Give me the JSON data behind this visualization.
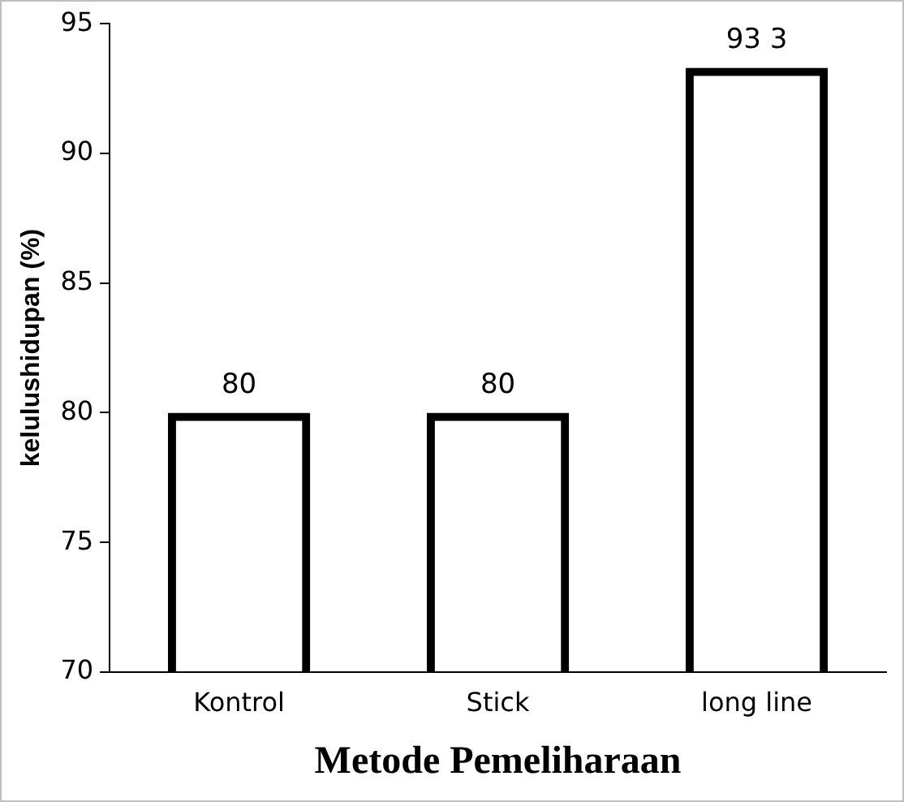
{
  "chart_data": {
    "type": "bar",
    "xlabel": "Metode Pemeliharaan",
    "ylabel": "kelulushidupan (%)",
    "categories": [
      "Kontrol",
      "Stick",
      "long line"
    ],
    "values": [
      80,
      80,
      93.3
    ],
    "color": "#000000",
    "value_labels": [
      "80",
      "80",
      "93 3"
    ],
    "ylim": [
      70,
      95
    ],
    "yticks": [
      70,
      75,
      80,
      85,
      90,
      95
    ],
    "grid": false,
    "legend": false
  }
}
